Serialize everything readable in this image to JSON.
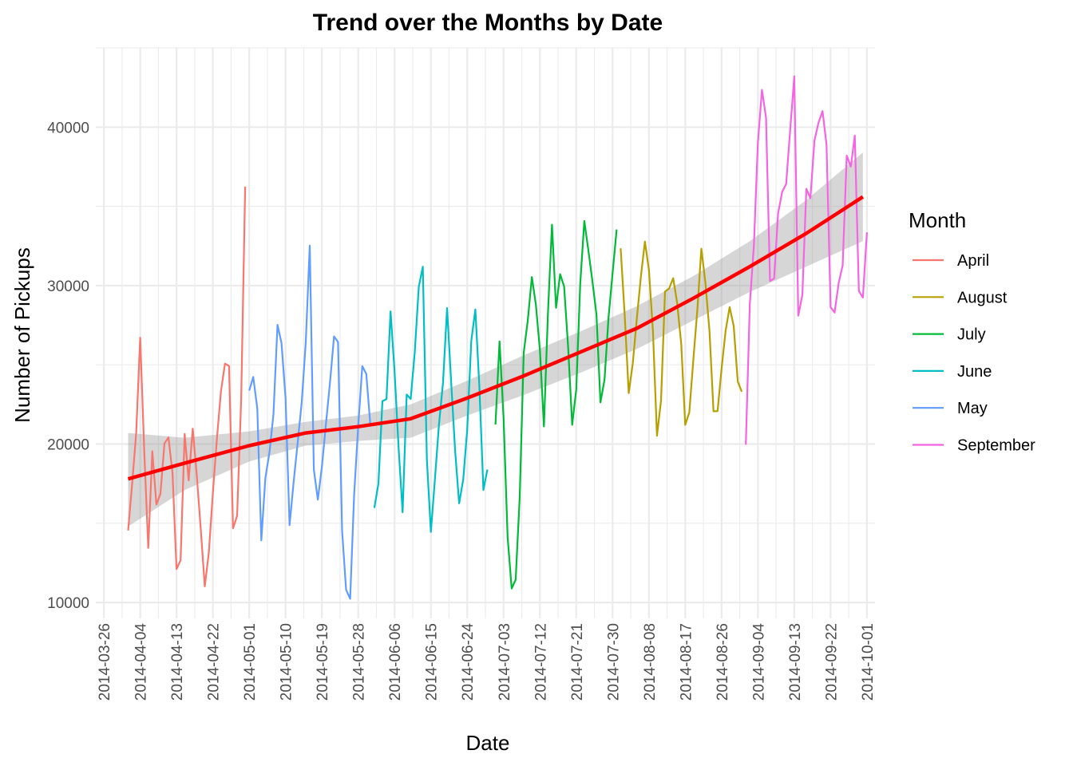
{
  "chart_data": {
    "type": "line",
    "title": "Trend over the Months by Date",
    "xlabel": "Date",
    "ylabel": "Number of Pickups",
    "xlim": [
      "2014-03-24",
      "2014-10-03"
    ],
    "ylim": [
      9000,
      45000
    ],
    "grid": true,
    "legend_title": "Month",
    "legend_position": "right",
    "x_ticks": [
      "2014-03-26",
      "2014-04-04",
      "2014-04-13",
      "2014-04-22",
      "2014-05-01",
      "2014-05-10",
      "2014-05-19",
      "2014-05-28",
      "2014-06-06",
      "2014-06-15",
      "2014-06-24",
      "2014-07-03",
      "2014-07-12",
      "2014-07-21",
      "2014-07-30",
      "2014-08-08",
      "2014-08-17",
      "2014-08-26",
      "2014-09-04",
      "2014-09-13",
      "2014-09-22",
      "2014-10-01"
    ],
    "y_ticks": [
      10000,
      20000,
      30000,
      40000
    ],
    "series": [
      {
        "name": "April",
        "color": "#F8766D",
        "start": "2014-04-01",
        "values": [
          14546,
          17474,
          20701,
          26714,
          19521,
          13445,
          19550,
          16188,
          16843,
          20041,
          20420,
          18170,
          12112,
          12674,
          20641,
          17712,
          20973,
          18074,
          14602,
          11017,
          13162,
          16975,
          20346,
          23352,
          25078,
          24925,
          14677,
          15475,
          22835,
          36251
        ]
      },
      {
        "name": "May",
        "color": "#619CFF",
        "start": "2014-05-01",
        "values": [
          23375,
          24235,
          22234,
          13918,
          17859,
          19470,
          21864,
          27525,
          26369,
          22889,
          14882,
          17603,
          20058,
          22620,
          26429,
          32521,
          18400,
          16493,
          18561,
          21241,
          23863,
          26792,
          26440,
          14522,
          10810,
          10238,
          16813,
          21149,
          24914,
          24426,
          21180
        ]
      },
      {
        "name": "June",
        "color": "#00BFC4",
        "start": "2014-06-01",
        "values": [
          15967,
          17503,
          22711,
          22837,
          28376,
          24600,
          19735,
          15694,
          23125,
          22846,
          25787,
          29935,
          31194,
          19029,
          14451,
          17813,
          21212,
          23868,
          28580,
          24002,
          19553,
          16258,
          17758,
          20892,
          26502,
          28496,
          23669,
          17102,
          18393
        ]
      },
      {
        "name": "July",
        "color": "#00BA38",
        "start": "2014-07-01",
        "values": [
          21228,
          26480,
          21597,
          14148,
          10890,
          11443,
          16680,
          25763,
          27817,
          30541,
          28805,
          25915,
          21111,
          28325,
          33845,
          28594,
          30722,
          29947,
          26057,
          21216,
          23443,
          30134,
          34073,
          32218,
          30291,
          28169,
          22628,
          24060,
          27970,
          30789,
          33541
        ]
      },
      {
        "name": "August",
        "color": "#B79F00",
        "start": "2014-08-01",
        "values": [
          32353,
          28113,
          23216,
          25092,
          27886,
          30540,
          32779,
          30996,
          27069,
          20527,
          22750,
          29622,
          29814,
          30469,
          28896,
          26310,
          21214,
          21999,
          25283,
          28488,
          32327,
          30155,
          27117,
          22064,
          22079,
          24749,
          27155,
          28648,
          27454,
          23947,
          23305
        ]
      },
      {
        "name": "September",
        "color": "#F564E3",
        "start": "2014-09-01",
        "values": [
          19961,
          28831,
          32521,
          39017,
          42350,
          40592,
          30291,
          30439,
          34553,
          35910,
          36408,
          39855,
          43204,
          28096,
          29400,
          36109,
          35513,
          39150,
          40271,
          41011,
          38865,
          28635,
          28298,
          30166,
          31277,
          38203,
          37504,
          39468,
          29656,
          29248,
          33361
        ]
      }
    ],
    "trend": {
      "name": "smooth",
      "color": "#FF0000",
      "band_color": "#999999",
      "x": [
        "2014-04-01",
        "2014-04-15",
        "2014-05-01",
        "2014-05-15",
        "2014-05-28",
        "2014-06-10",
        "2014-06-24",
        "2014-07-08",
        "2014-07-22",
        "2014-08-05",
        "2014-08-19",
        "2014-09-02",
        "2014-09-16",
        "2014-09-30"
      ],
      "y": [
        17800,
        18800,
        19900,
        20700,
        21100,
        21600,
        22900,
        24300,
        25800,
        27300,
        29200,
        31200,
        33300,
        35600
      ],
      "lower": [
        14800,
        17100,
        18900,
        19900,
        20200,
        20400,
        21800,
        23100,
        24500,
        26000,
        27800,
        29600,
        31200,
        32800
      ],
      "upper": [
        20700,
        20400,
        20800,
        21400,
        21800,
        22500,
        24000,
        25600,
        27100,
        28700,
        30600,
        32800,
        35400,
        38400
      ]
    }
  }
}
